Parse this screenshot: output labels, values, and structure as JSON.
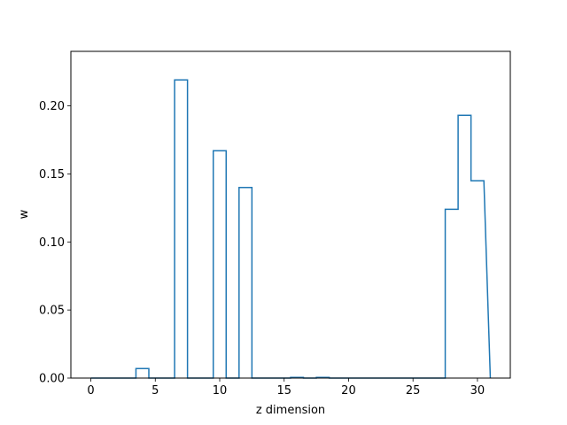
{
  "chart_data": {
    "type": "bar",
    "style": "step-histogram (unfilled outline)",
    "title": "",
    "xlabel": "z dimension",
    "ylabel": "w",
    "xlim": [
      -1.55,
      32.55
    ],
    "ylim": [
      0,
      0.24
    ],
    "xticks": [
      0,
      5,
      10,
      15,
      20,
      25,
      30
    ],
    "yticks": [
      0.0,
      0.05,
      0.1,
      0.15,
      0.2
    ],
    "ytick_labels": [
      "0.00",
      "0.05",
      "0.10",
      "0.15",
      "0.20"
    ],
    "xtick_labels": [
      "0",
      "5",
      "10",
      "15",
      "20",
      "25",
      "30"
    ],
    "grid": false,
    "line_color": "#1f77b4",
    "x_range": [
      0,
      31
    ],
    "series": [
      {
        "categories": [
          0,
          1,
          2,
          3,
          4,
          5,
          6,
          7,
          8,
          9,
          10,
          11,
          12,
          13,
          14,
          15,
          16,
          17,
          18,
          19,
          20,
          21,
          22,
          23,
          24,
          25,
          26,
          27,
          28,
          29,
          30
        ],
        "values": [
          0,
          0,
          0,
          0,
          0.007,
          0,
          0,
          0.219,
          0,
          0,
          0.167,
          0,
          0.14,
          0,
          0,
          0,
          0.0005,
          0,
          0.0005,
          0,
          0,
          0,
          0,
          0,
          0,
          0,
          0,
          0,
          0.124,
          0.193,
          0.145
        ]
      }
    ]
  }
}
